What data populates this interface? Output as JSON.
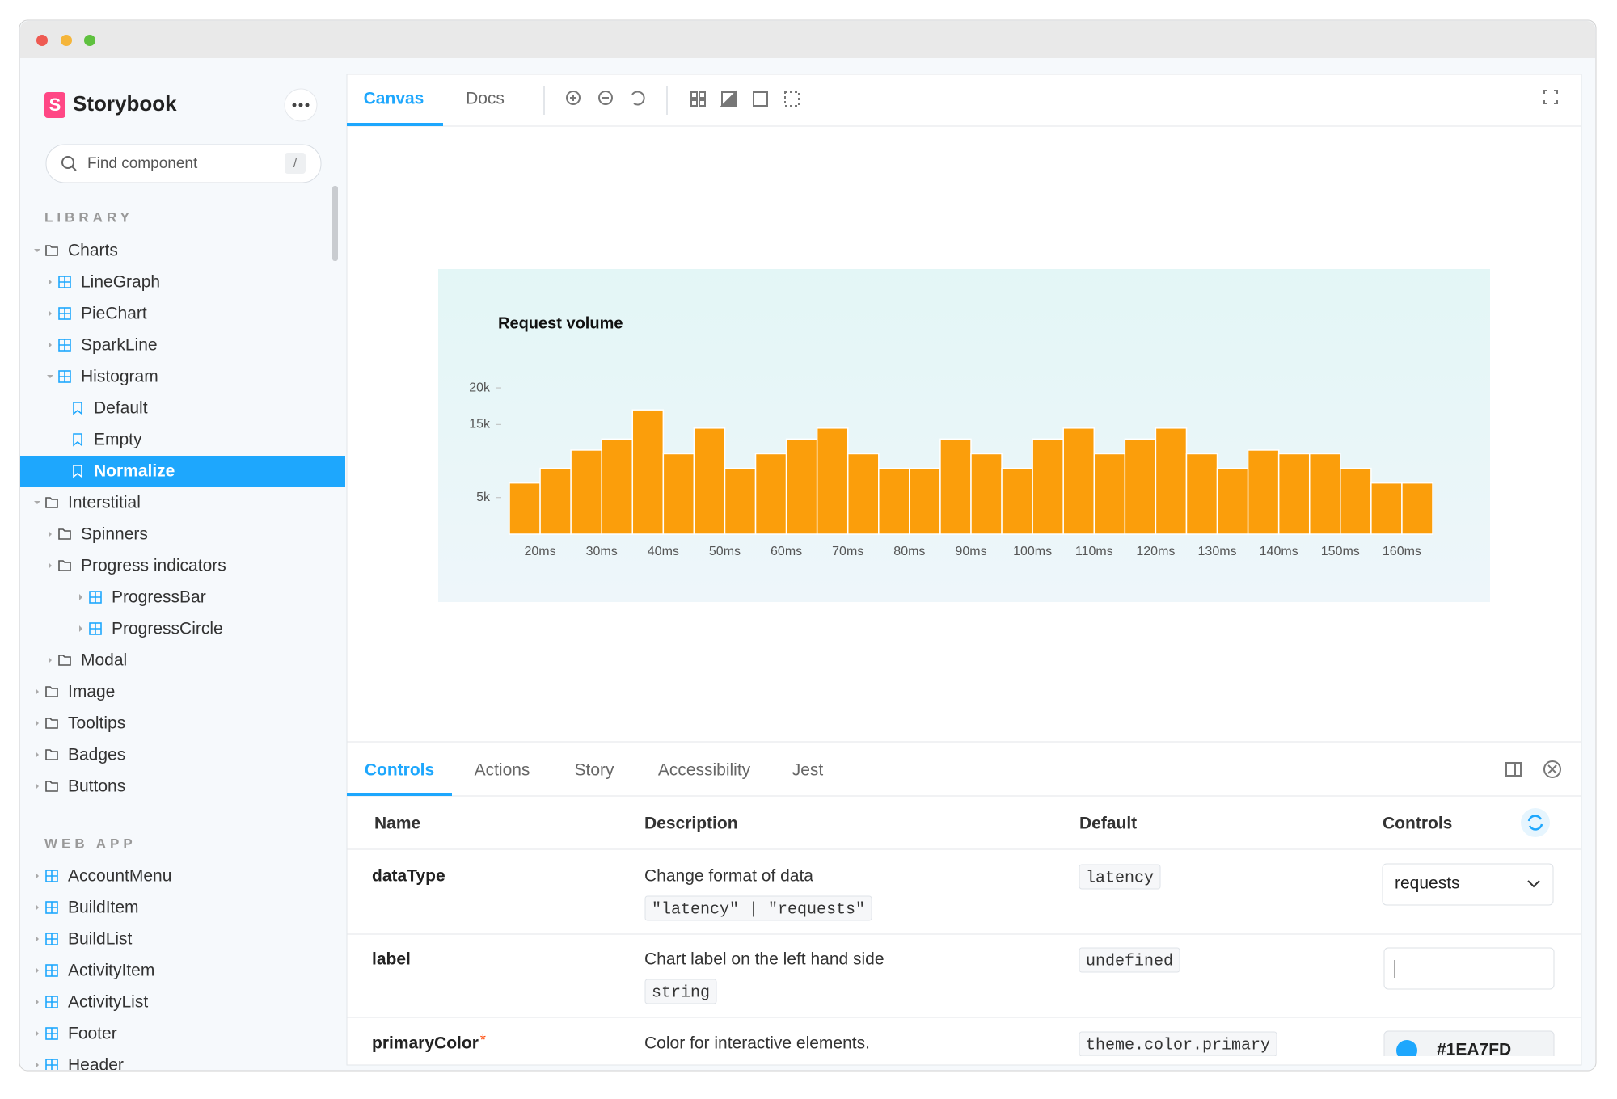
{
  "sidebar": {
    "logo": "S",
    "brand": "Storybook",
    "search": "Find component",
    "shortcut": "/",
    "sections": [
      {
        "title": "LIBRARY",
        "items": [
          "Charts",
          "LineGraph",
          "PieChart",
          "SparkLine",
          "Histogram",
          "Default",
          "Empty",
          "Normalize",
          "Interstitial",
          "Spinners",
          "Progress indicators",
          "ProgressBar",
          "ProgressCircle",
          "Modal",
          "Image",
          "Tooltips",
          "Badges",
          "Buttons"
        ]
      },
      {
        "title": "WEB APP",
        "items": [
          "AccountMenu",
          "BuildItem",
          "BuildList",
          "ActivityItem",
          "ActivityList",
          "Footer",
          "Header"
        ]
      }
    ]
  },
  "toolbar": {
    "tabs": [
      "Canvas",
      "Docs"
    ]
  },
  "chart_data": {
    "type": "histogram",
    "title": "Request volume",
    "color": "#fb9e0b",
    "bins": [
      15,
      20,
      25,
      30,
      35,
      40,
      45,
      50,
      55,
      60,
      65,
      70,
      75,
      80,
      85,
      90,
      95,
      100,
      105,
      110,
      115,
      120,
      125,
      130,
      135,
      140,
      145,
      150,
      155,
      160,
      165
    ],
    "values": [
      7000,
      9000,
      11500,
      13000,
      17000,
      11000,
      14500,
      9000,
      11000,
      13000,
      14500,
      11000,
      9000,
      9000,
      13000,
      11000,
      9000,
      13000,
      14500,
      11000,
      13000,
      14500,
      11000,
      9000,
      11500,
      11000,
      11000,
      9000,
      7000,
      7000
    ],
    "xlim": [
      15,
      165
    ],
    "xticks": [
      {
        "value": 20,
        "label": "20ms"
      },
      {
        "value": 30,
        "label": "30ms"
      },
      {
        "value": 40,
        "label": "40ms"
      },
      {
        "value": 50,
        "label": "50ms"
      },
      {
        "value": 60,
        "label": "60ms"
      },
      {
        "value": 70,
        "label": "70ms"
      },
      {
        "value": 80,
        "label": "80ms"
      },
      {
        "value": 90,
        "label": "90ms"
      },
      {
        "value": 100,
        "label": "100ms"
      },
      {
        "value": 110,
        "label": "110ms"
      },
      {
        "value": 120,
        "label": "120ms"
      },
      {
        "value": 130,
        "label": "130ms"
      },
      {
        "value": 140,
        "label": "140ms"
      },
      {
        "value": 150,
        "label": "150ms"
      },
      {
        "value": 160,
        "label": "160ms"
      }
    ],
    "ylim": [
      0,
      21000
    ],
    "yticks": [
      {
        "value": 5000,
        "label": "5k"
      },
      {
        "value": 15000,
        "label": "15k"
      },
      {
        "value": 20000,
        "label": "20k"
      }
    ]
  },
  "addons": {
    "tabs": [
      "Controls",
      "Actions",
      "Story",
      "Accessibility",
      "Jest"
    ],
    "table": {
      "header": [
        "Name",
        "Description",
        "Default",
        "Controls"
      ],
      "rows": [
        {
          "name": "dataType",
          "description": "Change format of data",
          "type": "\"latency\" | \"requests\"",
          "default": "latency",
          "control": "requests"
        },
        {
          "name": "label",
          "description": "Chart label on the left hand side",
          "type": "string",
          "default": "undefined"
        },
        {
          "name": "primaryColor",
          "required": "*",
          "description": "Color for interactive elements.",
          "default": "theme.color.primary",
          "control": "#1EA7FD"
        }
      ]
    }
  }
}
